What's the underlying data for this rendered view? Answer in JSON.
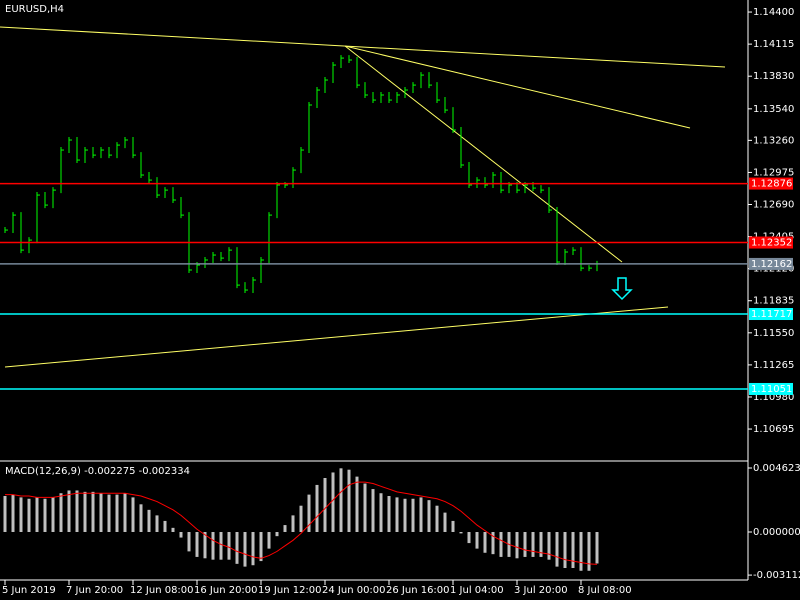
{
  "chart_data": [
    {
      "type": "bars",
      "title": "EURUSD,H4",
      "color": "#00ff00",
      "categories": [
        "5 Jun 2019",
        null,
        null,
        null,
        null,
        null,
        null,
        null,
        "7 Jun 20:00",
        null,
        null,
        null,
        null,
        null,
        null,
        null,
        "12 Jun 08:00",
        null,
        null,
        null,
        null,
        null,
        null,
        null,
        "16 Jun 20:00",
        null,
        null,
        null,
        null,
        null,
        null,
        null,
        "19 Jun 12:00",
        null,
        null,
        null,
        null,
        null,
        null,
        null,
        "24 Jun 00:00",
        null,
        null,
        null,
        null,
        null,
        null,
        null,
        "26 Jun 16:00",
        null,
        null,
        null,
        null,
        null,
        null,
        null,
        "1 Jul 04:00",
        null,
        null,
        null,
        null,
        null,
        null,
        null,
        "3 Jul 20:00",
        null,
        null,
        null,
        null,
        null,
        null,
        null,
        "8 Jul 08:00",
        null,
        null
      ],
      "values": [
        1.12463,
        1.12596,
        1.12285,
        1.12374,
        1.12774,
        1.12685,
        1.12818,
        1.13174,
        1.13263,
        1.13085,
        1.13174,
        1.13129,
        1.13174,
        1.13129,
        1.13218,
        1.13263,
        1.13129,
        1.12952,
        1.12907,
        1.12774,
        1.12818,
        1.1273,
        1.12596,
        1.12108,
        1.12152,
        1.12197,
        1.12241,
        1.12214,
        1.12285,
        1.11974,
        1.1193,
        1.12019,
        1.12197,
        1.12596,
        1.12863,
        1.12863,
        1.12996,
        1.13174,
        1.13574,
        1.13707,
        1.13796,
        1.13929,
        1.13991,
        1.13974,
        1.13751,
        1.13663,
        1.13618,
        1.13663,
        1.13618,
        1.13663,
        1.13707,
        1.13751,
        1.1384,
        1.13751,
        1.13618,
        1.13529,
        1.13352,
        1.13041,
        1.12863,
        1.12907,
        1.12863,
        1.12952,
        1.12818,
        1.12863,
        1.12818,
        1.12863,
        1.12836,
        1.12818,
        1.12641,
        1.12179,
        1.12268,
        1.12285,
        1.12125,
        1.12125,
        1.12162
      ],
      "ylim": [
        1.1042,
        1.14507
      ],
      "yticks": [
        {
          "value": 1.144,
          "label": "1.14400"
        },
        1.14115,
        {
          "value": 1.1383,
          "label": "1.13830"
        },
        {
          "value": 1.1354,
          "label": "1.13540"
        },
        {
          "value": 1.1326,
          "label": "1.13260"
        },
        1.12975,
        {
          "value": 1.1269,
          "label": "1.12690"
        },
        1.12405,
        {
          "value": 1.1212,
          "label": "1.12120"
        },
        1.11835,
        {
          "value": 1.1155,
          "label": "1.11550"
        },
        1.11265,
        {
          "value": 1.1098,
          "label": "1.10980"
        },
        1.10695
      ],
      "levels": [
        {
          "value": 1.12876,
          "color": "#ff0000"
        },
        {
          "value": 1.12352,
          "color": "#ff0000"
        },
        {
          "value": 1.11717,
          "color": "#00ffff"
        },
        {
          "value": 1.11051,
          "color": "#00ffff"
        },
        {
          "value": 1.12162,
          "color": "#778899"
        }
      ]
    },
    {
      "type": "macd",
      "title": "MACD(12,26,9) -0.002275 -0.002334",
      "color": "#c0c0c0",
      "signal_color": "#ff0000",
      "values": [
        0.0026,
        0.0027,
        0.0025,
        0.0024,
        0.0025,
        0.0024,
        0.0025,
        0.0028,
        0.003,
        0.003,
        0.0029,
        0.0029,
        0.0028,
        0.0027,
        0.0027,
        0.0028,
        0.0025,
        0.002,
        0.0016,
        0.0012,
        0.0008,
        0.0003,
        -0.0004,
        -0.0014,
        -0.0018,
        -0.0019,
        -0.002,
        -0.002,
        -0.002,
        -0.0023,
        -0.0025,
        -0.0024,
        -0.0021,
        -0.0012,
        -0.0003,
        0.0005,
        0.0012,
        0.0019,
        0.0027,
        0.0034,
        0.0039,
        0.0043,
        0.0046,
        0.0045,
        0.004,
        0.0035,
        0.0031,
        0.0028,
        0.0026,
        0.0025,
        0.0024,
        0.0024,
        0.0025,
        0.0023,
        0.0019,
        0.0014,
        0.0008,
        -0.0001,
        -0.0008,
        -0.0012,
        -0.0015,
        -0.0016,
        -0.0018,
        -0.0018,
        -0.0019,
        -0.0018,
        -0.0018,
        -0.0018,
        -0.002,
        -0.0025,
        -0.0026,
        -0.0026,
        -0.0028,
        -0.0028,
        -0.002275
      ],
      "signal": [
        0.0027,
        0.0027,
        0.0026,
        0.0026,
        0.0025,
        0.0025,
        0.0025,
        0.0026,
        0.0027,
        0.0028,
        0.0028,
        0.0028,
        0.0028,
        0.0028,
        0.0028,
        0.0028,
        0.0027,
        0.0026,
        0.0024,
        0.0022,
        0.0019,
        0.0016,
        0.0012,
        0.0007,
        0.0002,
        -0.0002,
        -0.0006,
        -0.0009,
        -0.0011,
        -0.0014,
        -0.0016,
        -0.0018,
        -0.0019,
        -0.0017,
        -0.0014,
        -0.001,
        -0.0006,
        -0.0001,
        0.0005,
        0.0011,
        0.0017,
        0.0023,
        0.0029,
        0.0034,
        0.0036,
        0.0036,
        0.0035,
        0.0033,
        0.0031,
        0.0029,
        0.0028,
        0.0027,
        0.0026,
        0.0025,
        0.0024,
        0.0022,
        0.0019,
        0.0015,
        0.001,
        0.0005,
        0.0001,
        -0.0003,
        -0.0006,
        -0.0009,
        -0.0011,
        -0.0013,
        -0.0014,
        -0.0015,
        -0.0016,
        -0.0018,
        -0.002,
        -0.0021,
        -0.0022,
        -0.0023,
        -0.002334
      ],
      "ylim": [
        -0.003467,
        0.005056
      ],
      "yticks": [
        0.004623,
        {
          "value": 0,
          "label": "0.000000"
        },
        -0.003112
      ]
    }
  ]
}
